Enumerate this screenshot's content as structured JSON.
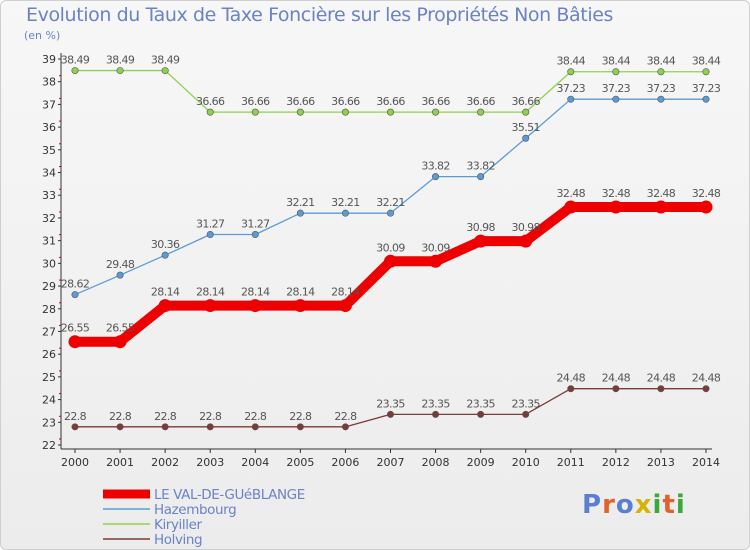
{
  "header": {
    "title": "Evolution du Taux de Taxe Foncière sur les Propriétés Non Bâties",
    "unit_label": "(en %)"
  },
  "logo": {
    "text": "Proxiti",
    "colors": [
      "#5b7fd0",
      "#e0632c",
      "#5b7fd0",
      "#d6b300",
      "#3aa935",
      "#e0632c",
      "#3aa935"
    ]
  },
  "chart_data": {
    "type": "line",
    "title": "Evolution du Taux de Taxe Foncière sur les Propriétés Non Bâties",
    "ylabel": "(en %)",
    "xlabel": "",
    "ylim": [
      22,
      39
    ],
    "y_ticks": [
      22,
      23,
      24,
      25,
      26,
      27,
      28,
      29,
      30,
      31,
      32,
      33,
      34,
      35,
      36,
      37,
      38,
      39
    ],
    "grid": false,
    "legend_position": "bottom-left",
    "x": [
      "2000",
      "2001",
      "2002",
      "2003",
      "2004",
      "2005",
      "2006",
      "2007",
      "2008",
      "2009",
      "2010",
      "2011",
      "2012",
      "2013",
      "2014"
    ],
    "series": [
      {
        "name": "LE VAL-DE-GUéBLANGE",
        "color": "#ee0000",
        "values": [
          26.55,
          26.55,
          28.14,
          28.14,
          28.14,
          28.14,
          28.14,
          30.09,
          30.09,
          30.98,
          30.98,
          32.48,
          32.48,
          32.48,
          32.48
        ],
        "labels": [
          "26.55",
          "26.55",
          "28.14",
          "28.14",
          "28.14",
          "28.14",
          "28.14",
          "30.09",
          "30.09",
          "30.98",
          "30.98",
          "32.48",
          "32.48",
          "32.48",
          "32.48"
        ]
      },
      {
        "name": "Hazembourg",
        "color": "#5b9bd5",
        "values": [
          28.62,
          29.48,
          30.36,
          31.27,
          31.27,
          32.21,
          32.21,
          32.21,
          33.82,
          33.82,
          35.51,
          37.23,
          37.23,
          37.23,
          37.23
        ],
        "labels": [
          "28.62",
          "29.48",
          "30.36",
          "31.27",
          "31.27",
          "32.21",
          "32.21",
          "32.21",
          "33.82",
          "33.82",
          "35.51",
          "37.23",
          "37.23",
          "37.23",
          "37.23"
        ]
      },
      {
        "name": "Kiryiller",
        "color": "#8fd14f",
        "values": [
          38.49,
          38.49,
          38.49,
          36.66,
          36.66,
          36.66,
          36.66,
          36.66,
          36.66,
          36.66,
          36.66,
          38.44,
          38.44,
          38.44,
          38.44
        ],
        "labels": [
          "38.49",
          "38.49",
          "38.49",
          "36.66",
          "36.66",
          "36.66",
          "36.66",
          "36.66",
          "36.66",
          "36.66",
          "36.66",
          "38.44",
          "38.44",
          "38.44",
          "38.44"
        ]
      },
      {
        "name": "Holving",
        "color": "#7b3b36",
        "values": [
          22.8,
          22.8,
          22.8,
          22.8,
          22.8,
          22.8,
          22.8,
          23.35,
          23.35,
          23.35,
          23.35,
          24.48,
          24.48,
          24.48,
          24.48
        ],
        "labels": [
          "22.8",
          "22.8",
          "22.8",
          "22.8",
          "22.8",
          "22.8",
          "22.8",
          "23.35",
          "23.35",
          "23.35",
          "23.35",
          "24.48",
          "24.48",
          "24.48",
          "24.48"
        ]
      }
    ]
  }
}
